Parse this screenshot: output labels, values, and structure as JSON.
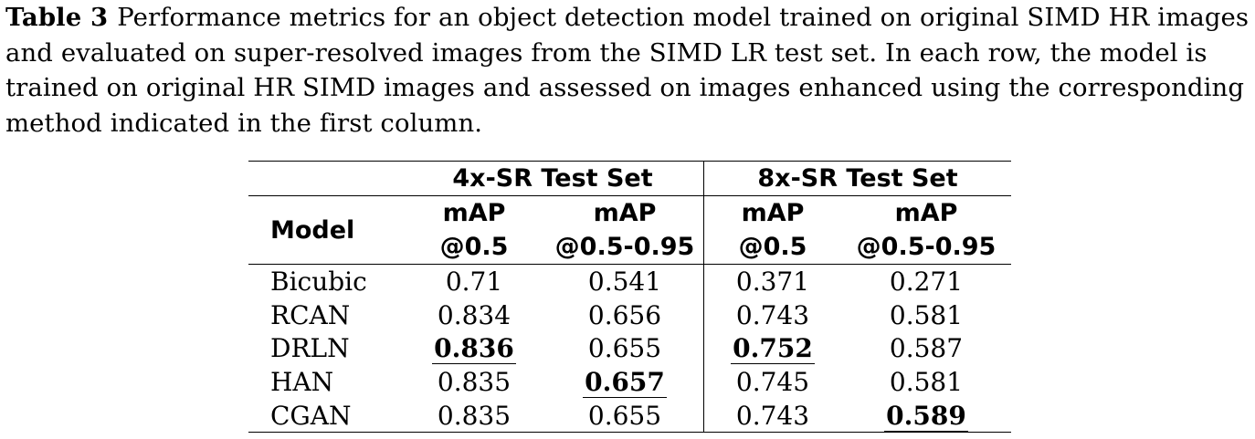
{
  "caption": {
    "label": "Table 3",
    "text": "Performance metrics for an object detection model trained on original SIMD HR images and evaluated on super-resolved images from the SIMD LR test set. In each row, the model is trained on original HR SIMD images and assessed on images enhanced using the corresponding method indicated in the first column."
  },
  "table": {
    "model_header": "Model",
    "groups": [
      "4x-SR Test Set",
      "8x-SR Test Set"
    ],
    "metric_line1": [
      "mAP",
      "mAP",
      "mAP",
      "mAP"
    ],
    "metric_line2": [
      "@0.5",
      "@0.5-0.95",
      "@0.5",
      "@0.5-0.95"
    ],
    "rows": [
      {
        "model": "Bicubic",
        "values": [
          "0.71",
          "0.541",
          "0.371",
          "0.271"
        ]
      },
      {
        "model": "RCAN",
        "values": [
          "0.834",
          "0.656",
          "0.743",
          "0.581"
        ]
      },
      {
        "model": "DRLN",
        "values": [
          "0.836",
          "0.655",
          "0.752",
          "0.587"
        ]
      },
      {
        "model": "HAN",
        "values": [
          "0.835",
          "0.657",
          "0.745",
          "0.581"
        ]
      },
      {
        "model": "CGAN",
        "values": [
          "0.835",
          "0.655",
          "0.743",
          "0.589"
        ]
      }
    ],
    "best_per_column": [
      "DRLN",
      "HAN",
      "DRLN",
      "CGAN"
    ]
  }
}
